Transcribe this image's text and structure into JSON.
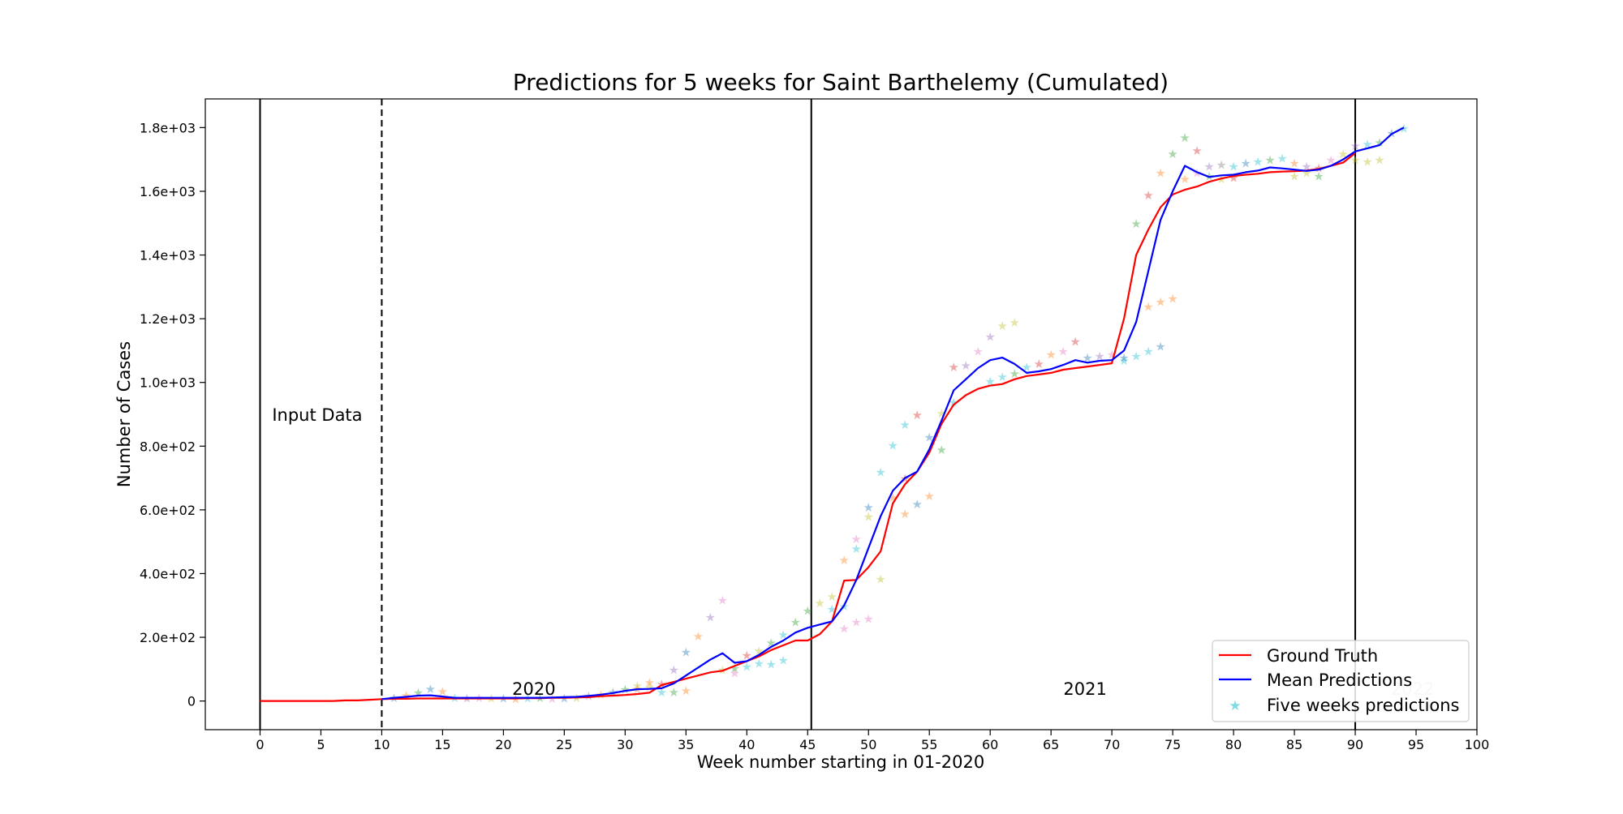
{
  "chart_data": {
    "type": "line",
    "title": "Predictions for 5 weeks for Saint Barthelemy (Cumulated)",
    "xlabel": "Week number starting in 01-2020",
    "ylabel": "Number of Cases",
    "xlim": [
      -4.5,
      100
    ],
    "ylim": [
      -90,
      1890
    ],
    "x_ticks": [
      0,
      5,
      10,
      15,
      20,
      25,
      30,
      35,
      40,
      45,
      50,
      55,
      60,
      65,
      70,
      75,
      80,
      85,
      90,
      95,
      100
    ],
    "y_ticks": [
      {
        "value": 0,
        "label": "0"
      },
      {
        "value": 200,
        "label": "2.0e+02"
      },
      {
        "value": 400,
        "label": "4.0e+02"
      },
      {
        "value": 600,
        "label": "6.0e+02"
      },
      {
        "value": 800,
        "label": "8.0e+02"
      },
      {
        "value": 1000,
        "label": "1.0e+03"
      },
      {
        "value": 1200,
        "label": "1.2e+03"
      },
      {
        "value": 1400,
        "label": "1.4e+03"
      },
      {
        "value": 1600,
        "label": "1.6e+03"
      },
      {
        "value": 1800,
        "label": "1.8e+03"
      }
    ],
    "grid": false,
    "legend_position": "bottom-right",
    "vertical_lines": [
      {
        "x": 0,
        "style": "solid"
      },
      {
        "x": 10,
        "style": "dashed"
      },
      {
        "x": 45.3,
        "style": "solid"
      },
      {
        "x": 90,
        "style": "solid"
      }
    ],
    "annotations": [
      {
        "text": "Input Data",
        "x": 4.7,
        "y": 880
      },
      {
        "text": "2020",
        "x": 22.5,
        "y": 20
      },
      {
        "text": "2021",
        "x": 67.8,
        "y": 20
      },
      {
        "text": "2022",
        "x": 94.7,
        "y": 20,
        "faded": true
      }
    ],
    "series": [
      {
        "name": "Ground Truth",
        "color": "#ff0000",
        "x": [
          0,
          1,
          2,
          3,
          4,
          5,
          6,
          7,
          8,
          9,
          10,
          11,
          12,
          13,
          14,
          15,
          16,
          17,
          18,
          19,
          20,
          21,
          22,
          23,
          24,
          25,
          26,
          27,
          28,
          29,
          30,
          31,
          32,
          33,
          34,
          35,
          36,
          37,
          38,
          39,
          40,
          41,
          42,
          43,
          44,
          45,
          46,
          47,
          48,
          49,
          50,
          51,
          52,
          53,
          54,
          55,
          56,
          57,
          58,
          59,
          60,
          61,
          62,
          63,
          64,
          65,
          66,
          67,
          68,
          69,
          70,
          71,
          72,
          73,
          74,
          75,
          76,
          77,
          78,
          79,
          80,
          81,
          82,
          83,
          84,
          85,
          86,
          87,
          88,
          89,
          90
        ],
        "values": [
          0,
          0,
          0,
          0,
          0,
          0,
          0,
          2,
          2,
          4,
          6,
          7,
          7,
          8,
          8,
          8,
          8,
          8,
          8,
          8,
          8,
          8,
          9,
          9,
          10,
          10,
          11,
          12,
          15,
          17,
          19,
          22,
          26,
          50,
          60,
          70,
          80,
          90,
          95,
          110,
          125,
          140,
          160,
          175,
          190,
          190,
          210,
          250,
          378,
          380,
          420,
          470,
          620,
          680,
          720,
          780,
          870,
          930,
          960,
          980,
          990,
          995,
          1010,
          1020,
          1025,
          1030,
          1040,
          1045,
          1050,
          1055,
          1060,
          1200,
          1400,
          1480,
          1550,
          1590,
          1605,
          1615,
          1630,
          1640,
          1648,
          1652,
          1655,
          1660,
          1662,
          1663,
          1665,
          1670,
          1680,
          1690,
          1720
        ]
      },
      {
        "name": "Mean Predictions",
        "color": "#0000ff",
        "x": [
          10,
          11,
          12,
          13,
          14,
          15,
          16,
          17,
          18,
          19,
          20,
          21,
          22,
          23,
          24,
          25,
          26,
          27,
          28,
          29,
          30,
          31,
          32,
          33,
          34,
          35,
          36,
          37,
          38,
          39,
          40,
          41,
          42,
          43,
          44,
          45,
          46,
          47,
          48,
          49,
          50,
          51,
          52,
          53,
          54,
          55,
          56,
          57,
          58,
          59,
          60,
          61,
          62,
          63,
          64,
          65,
          66,
          67,
          68,
          69,
          70,
          71,
          72,
          73,
          74,
          75,
          76,
          77,
          78,
          79,
          80,
          81,
          82,
          83,
          84,
          85,
          86,
          87,
          88,
          89,
          90,
          91,
          92,
          93,
          94
        ],
        "values": [
          6,
          10,
          13,
          17,
          18,
          14,
          10,
          10,
          10,
          10,
          10,
          10,
          10,
          10,
          11,
          12,
          13,
          16,
          20,
          25,
          32,
          37,
          38,
          40,
          55,
          80,
          105,
          130,
          150,
          120,
          125,
          145,
          170,
          190,
          215,
          230,
          240,
          250,
          300,
          380,
          480,
          580,
          660,
          700,
          720,
          790,
          880,
          975,
          1010,
          1045,
          1070,
          1078,
          1058,
          1030,
          1035,
          1042,
          1055,
          1070,
          1062,
          1068,
          1070,
          1100,
          1190,
          1350,
          1510,
          1600,
          1680,
          1660,
          1645,
          1650,
          1652,
          1660,
          1665,
          1675,
          1672,
          1668,
          1664,
          1668,
          1680,
          1700,
          1725,
          1735,
          1745,
          1780,
          1800
        ]
      },
      {
        "name": "Five weeks predictions",
        "color": "#17becf",
        "marker": "star",
        "points": [
          [
            11,
            12,
            "#1f77b4"
          ],
          [
            12,
            20,
            "#ff7f0e"
          ],
          [
            13,
            28,
            "#2ca02c"
          ],
          [
            14,
            40,
            "#1f77b4"
          ],
          [
            15,
            32,
            "#ff7f0e"
          ],
          [
            16,
            12,
            "#17becf"
          ],
          [
            17,
            10,
            "#9467bd"
          ],
          [
            18,
            12,
            "#e377c2"
          ],
          [
            19,
            10,
            "#bcbd22"
          ],
          [
            20,
            11,
            "#1f77b4"
          ],
          [
            21,
            8,
            "#ff7f0e"
          ],
          [
            22,
            10,
            "#17becf"
          ],
          [
            23,
            12,
            "#2ca02c"
          ],
          [
            24,
            9,
            "#e377c2"
          ],
          [
            25,
            10,
            "#1f77b4"
          ],
          [
            26,
            12,
            "#bcbd22"
          ],
          [
            27,
            18,
            "#9467bd"
          ],
          [
            28,
            22,
            "#ff7f0e"
          ],
          [
            29,
            30,
            "#1f77b4"
          ],
          [
            30,
            38,
            "#2ca02c"
          ],
          [
            31,
            50,
            "#bcbd22"
          ],
          [
            32,
            60,
            "#ff7f0e"
          ],
          [
            33,
            30,
            "#17becf"
          ],
          [
            34,
            100,
            "#9467bd"
          ],
          [
            35,
            155,
            "#1f77b4"
          ],
          [
            36,
            205,
            "#ff7f0e"
          ],
          [
            37,
            265,
            "#9467bd"
          ],
          [
            38,
            318,
            "#e377c2"
          ],
          [
            39,
            105,
            "#2ca02c"
          ],
          [
            40,
            145,
            "#d62728"
          ],
          [
            41,
            160,
            "#bcbd22"
          ],
          [
            42,
            185,
            "#2ca02c"
          ],
          [
            43,
            210,
            "#17becf"
          ],
          [
            44,
            250,
            "#2ca02c"
          ],
          [
            45,
            285,
            "#2ca02c"
          ],
          [
            46,
            310,
            "#bcbd22"
          ],
          [
            47,
            330,
            "#bcbd22"
          ],
          [
            48,
            445,
            "#ff7f0e"
          ],
          [
            49,
            510,
            "#e377c2"
          ],
          [
            50,
            610,
            "#1f77b4"
          ],
          [
            51,
            720,
            "#17becf"
          ],
          [
            52,
            805,
            "#17becf"
          ],
          [
            53,
            870,
            "#17becf"
          ],
          [
            54,
            900,
            "#d62728"
          ],
          [
            55,
            830,
            "#1f77b4"
          ],
          [
            56,
            905,
            "#bcbd22"
          ],
          [
            57,
            1050,
            "#d62728"
          ],
          [
            58,
            1055,
            "#9467bd"
          ],
          [
            59,
            1100,
            "#e377c2"
          ],
          [
            60,
            1145,
            "#9467bd"
          ],
          [
            61,
            1180,
            "#bcbd22"
          ],
          [
            62,
            1190,
            "#bcbd22"
          ],
          [
            63,
            1050,
            "#17becf"
          ],
          [
            64,
            1060,
            "#d62728"
          ],
          [
            65,
            1090,
            "#ff7f0e"
          ],
          [
            66,
            1100,
            "#e377c2"
          ],
          [
            67,
            1130,
            "#d62728"
          ],
          [
            68,
            1080,
            "#1f77b4"
          ],
          [
            69,
            1085,
            "#9467bd"
          ],
          [
            70,
            1090,
            "#e377c2"
          ],
          [
            71,
            1070,
            "#17becf"
          ],
          [
            72,
            1500,
            "#2ca02c"
          ],
          [
            73,
            1590,
            "#d62728"
          ],
          [
            74,
            1660,
            "#ff7f0e"
          ],
          [
            75,
            1720,
            "#2ca02c"
          ],
          [
            76,
            1770,
            "#2ca02c"
          ],
          [
            77,
            1730,
            "#d62728"
          ],
          [
            78,
            1680,
            "#9467bd"
          ],
          [
            79,
            1685,
            "#7f7f7f"
          ],
          [
            80,
            1680,
            "#17becf"
          ],
          [
            81,
            1690,
            "#1f77b4"
          ],
          [
            82,
            1695,
            "#17becf"
          ],
          [
            83,
            1700,
            "#2ca02c"
          ],
          [
            84,
            1705,
            "#17becf"
          ],
          [
            85,
            1690,
            "#ff7f0e"
          ],
          [
            86,
            1680,
            "#9467bd"
          ],
          [
            87,
            1675,
            "#d62728"
          ],
          [
            88,
            1700,
            "#e377c2"
          ],
          [
            89,
            1720,
            "#bcbd22"
          ],
          [
            90,
            1745,
            "#9467bd"
          ],
          [
            91,
            1750,
            "#17becf"
          ],
          [
            92,
            1755,
            "#2ca02c"
          ],
          [
            93,
            1785,
            "#1f77b4"
          ],
          [
            94,
            1800,
            "#17becf"
          ],
          [
            71,
            1080,
            "#1f77b4"
          ],
          [
            72,
            1085,
            "#17becf"
          ],
          [
            73,
            1100,
            "#17becf"
          ],
          [
            74,
            1115,
            "#1f77b4"
          ],
          [
            73,
            1240,
            "#ff7f0e"
          ],
          [
            74,
            1255,
            "#ff7f0e"
          ],
          [
            75,
            1265,
            "#ff7f0e"
          ],
          [
            53,
            590,
            "#ff7f0e"
          ],
          [
            54,
            620,
            "#1f77b4"
          ],
          [
            55,
            645,
            "#ff7f0e"
          ],
          [
            48,
            230,
            "#e377c2"
          ],
          [
            49,
            250,
            "#e377c2"
          ],
          [
            50,
            260,
            "#e377c2"
          ],
          [
            51,
            385,
            "#bcbd22"
          ],
          [
            60,
            1005,
            "#17becf"
          ],
          [
            61,
            1020,
            "#17becf"
          ],
          [
            62,
            1030,
            "#2ca02c"
          ],
          [
            56,
            790,
            "#2ca02c"
          ],
          [
            57,
            940,
            "#17becf"
          ],
          [
            85,
            1650,
            "#bcbd22"
          ],
          [
            86,
            1660,
            "#bcbd22"
          ],
          [
            87,
            1650,
            "#2ca02c"
          ],
          [
            90,
            1700,
            "#bcbd22"
          ],
          [
            91,
            1695,
            "#bcbd22"
          ],
          [
            92,
            1700,
            "#bcbd22"
          ],
          [
            38,
            100,
            "#bcbd22"
          ],
          [
            39,
            90,
            "#e377c2"
          ],
          [
            40,
            110,
            "#17becf"
          ],
          [
            41,
            120,
            "#17becf"
          ],
          [
            42,
            118,
            "#17becf"
          ],
          [
            43,
            130,
            "#17becf"
          ],
          [
            31,
            40,
            "#ff7f0e"
          ],
          [
            32,
            45,
            "#bcbd22"
          ],
          [
            33,
            55,
            "#d62728"
          ],
          [
            34,
            30,
            "#2ca02c"
          ],
          [
            35,
            35,
            "#ff7f0e"
          ],
          [
            47,
            290,
            "#17becf"
          ],
          [
            48,
            300,
            "#17becf"
          ],
          [
            49,
            480,
            "#17becf"
          ],
          [
            50,
            580,
            "#bcbd22"
          ],
          [
            52,
            640,
            "#ff7f0e"
          ],
          [
            53,
            700,
            "#d62728"
          ],
          [
            76,
            1640,
            "#ff7f0e"
          ],
          [
            77,
            1660,
            "#e377c2"
          ],
          [
            78,
            1650,
            "#2ca02c"
          ],
          [
            79,
            1640,
            "#bcbd22"
          ],
          [
            80,
            1645,
            "#d62728"
          ]
        ]
      }
    ]
  }
}
